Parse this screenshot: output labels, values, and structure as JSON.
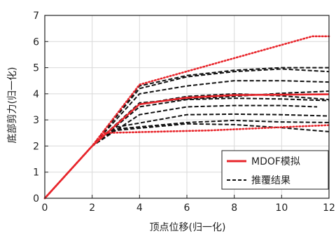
{
  "chart_data": {
    "type": "line",
    "xlabel": "顶点位移(归一化)",
    "ylabel": "底部剪力(归一化)",
    "xlim": [
      0,
      12
    ],
    "ylim": [
      0,
      7
    ],
    "xticks": [
      0,
      2,
      4,
      6,
      8,
      10,
      12
    ],
    "yticks": [
      0,
      1,
      2,
      3,
      4,
      5,
      6,
      7
    ],
    "grid": true,
    "legend_position": "bottom-right",
    "legend": [
      {
        "label": "MDOF模拟",
        "color": "#e8252b",
        "style": "solid"
      },
      {
        "label": "推覆结果",
        "color": "#111111",
        "style": "dashed"
      }
    ],
    "series": [
      {
        "type": "mdof",
        "points": [
          [
            0,
            0
          ],
          [
            2,
            2
          ],
          [
            4,
            3.6
          ],
          [
            6,
            3.85
          ],
          [
            8,
            3.95
          ],
          [
            12,
            3.98
          ]
        ]
      },
      {
        "type": "pushover",
        "points": [
          [
            0,
            0
          ],
          [
            2,
            2
          ],
          [
            4,
            3.2
          ],
          [
            6,
            3.5
          ],
          [
            8,
            3.55
          ],
          [
            10,
            3.55
          ],
          [
            11.5,
            3.5
          ]
        ]
      },
      {
        "type": "pushover",
        "points": [
          [
            0,
            0
          ],
          [
            2,
            2
          ],
          [
            4,
            3.5
          ],
          [
            6,
            3.78
          ],
          [
            8,
            3.83
          ],
          [
            10,
            3.8
          ],
          [
            12,
            3.74
          ]
        ]
      },
      {
        "type": "pushover",
        "points": [
          [
            0,
            0
          ],
          [
            2,
            2
          ],
          [
            4,
            3.6
          ],
          [
            6,
            3.9
          ],
          [
            8,
            4.0
          ],
          [
            10,
            3.92
          ],
          [
            12,
            3.78
          ]
        ]
      },
      {
        "type": "pushover",
        "points": [
          [
            0,
            0
          ],
          [
            2,
            2
          ],
          [
            4,
            3.65
          ],
          [
            6,
            3.8
          ],
          [
            8,
            3.9
          ],
          [
            10,
            4.02
          ],
          [
            12,
            4.1
          ]
        ]
      },
      {
        "type": "pushover",
        "points": [
          [
            0,
            0
          ],
          [
            2,
            2
          ],
          [
            4,
            4.0
          ],
          [
            6,
            4.3
          ],
          [
            8,
            4.5
          ],
          [
            10,
            4.5
          ],
          [
            12,
            4.45
          ]
        ]
      },
      {
        "type": "pushover",
        "points": [
          [
            0,
            0
          ],
          [
            2,
            2
          ],
          [
            4,
            4.3
          ],
          [
            6,
            4.7
          ],
          [
            8,
            4.9
          ],
          [
            10,
            5.0
          ],
          [
            12,
            5.0
          ]
        ]
      },
      {
        "type": "pushover",
        "points": [
          [
            0,
            0
          ],
          [
            2,
            2
          ],
          [
            4,
            4.2
          ],
          [
            6,
            4.65
          ],
          [
            8,
            4.85
          ],
          [
            10,
            4.95
          ],
          [
            12,
            4.85
          ]
        ]
      },
      {
        "type": "pushover",
        "points": [
          [
            0,
            0
          ],
          [
            2,
            2
          ],
          [
            3,
            2.72
          ],
          [
            6,
            3.2
          ],
          [
            8,
            3.22
          ],
          [
            10,
            3.2
          ],
          [
            12,
            3.15
          ]
        ]
      },
      {
        "type": "pushover",
        "points": [
          [
            0,
            0
          ],
          [
            2,
            2
          ],
          [
            3,
            2.65
          ],
          [
            6,
            2.9
          ],
          [
            8,
            2.98
          ],
          [
            10,
            2.92
          ],
          [
            12,
            2.9
          ]
        ]
      },
      {
        "type": "pushover",
        "points": [
          [
            0,
            0
          ],
          [
            2,
            2
          ],
          [
            3,
            2.6
          ],
          [
            6,
            2.85
          ],
          [
            8,
            2.82
          ],
          [
            10,
            2.7
          ],
          [
            12,
            2.55
          ]
        ]
      },
      {
        "type": "bound",
        "points": [
          [
            0,
            0
          ],
          [
            2,
            2
          ],
          [
            4,
            4.35
          ],
          [
            11.3,
            6.2
          ],
          [
            12,
            6.2
          ]
        ]
      },
      {
        "type": "bound",
        "points": [
          [
            0,
            0
          ],
          [
            2,
            2
          ],
          [
            2.5,
            2.5
          ],
          [
            7,
            2.6
          ],
          [
            12,
            2.8
          ]
        ]
      }
    ]
  },
  "style": {
    "mdof_color": "#e8252b",
    "bound_color": "#e8252b",
    "pushover_color": "#111111",
    "axis_color": "#222222",
    "grid_color": "#d9d9d9"
  }
}
